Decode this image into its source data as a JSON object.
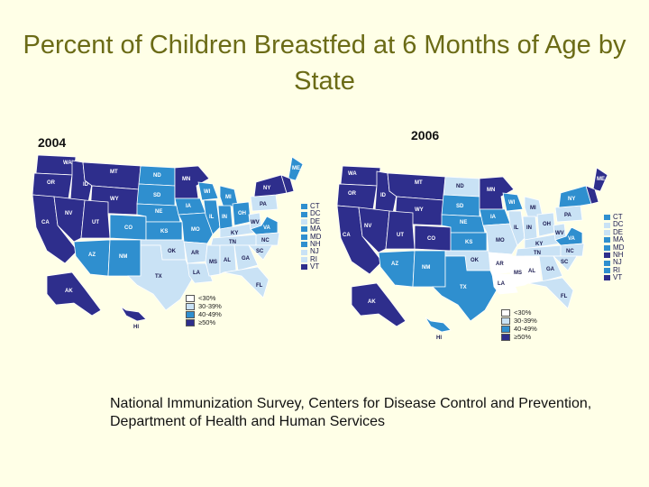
{
  "title": "Percent of Children Breastfed at 6 Months of Age by State",
  "source": "National Immunization Survey, Centers for Disease Control and Prevention, Department of Health and Human Services",
  "colors": {
    "lt30": "#ffffff",
    "r30_39": "#c9e2f5",
    "r40_49": "#2f8fcf",
    "ge50": "#2e2e8c"
  },
  "legend": [
    {
      "label": "<30%",
      "color_key": "lt30"
    },
    {
      "label": "30-39%",
      "color_key": "r30_39"
    },
    {
      "label": "40-49%",
      "color_key": "r40_49"
    },
    {
      "label": "≥50%",
      "color_key": "ge50"
    }
  ],
  "maps": [
    {
      "year": "2004",
      "labels": {
        "WA": "WA",
        "OR": "OR",
        "CA": "CA",
        "ID": "ID",
        "NV": "NV",
        "MT": "MT",
        "WY": "WY",
        "UT": "UT",
        "AZ": "AZ",
        "CO": "CO",
        "NM": "NM",
        "ND": "ND",
        "SD": "SD",
        "NE": "NE",
        "KS": "KS",
        "OK": "OK",
        "TX": "TX",
        "MN": "MN",
        "IA": "IA",
        "MO": "MO",
        "AR": "AR",
        "LA": "LA",
        "WI": "WI",
        "IL": "IL",
        "MS": "MS",
        "MI": "MI",
        "IN": "IN",
        "KY": "KY",
        "TN": "TN",
        "AL": "AL",
        "GA": "GA",
        "FL": "FL",
        "OH": "OH",
        "WV": "WV",
        "VA": "VA",
        "NC": "NC",
        "SC": "SC",
        "PA": "PA",
        "NY": "NY",
        "ME": "ME",
        "AK": "AK",
        "HI": "HI"
      },
      "side_states": [
        "CT",
        "DC",
        "DE",
        "MA",
        "MD",
        "NH",
        "NJ",
        "RI",
        "VT"
      ]
    },
    {
      "year": "2006",
      "labels": {
        "WA": "WA",
        "OR": "OR",
        "CA": "CA",
        "ID": "ID",
        "NV": "NV",
        "MT": "MT",
        "WY": "WY",
        "UT": "UT",
        "AZ": "AZ",
        "CO": "CO",
        "NM": "NM",
        "ND": "ND",
        "SD": "SD",
        "NE": "NE",
        "KS": "KS",
        "OK": "OK",
        "TX": "TX",
        "MN": "MN",
        "IA": "IA",
        "MO": "MO",
        "AR": "AR",
        "LA": "LA",
        "WI": "WI",
        "IL": "IL",
        "MS": "MS",
        "MI": "MI",
        "IN": "IN",
        "KY": "KY",
        "TN": "TN",
        "AL": "AL",
        "GA": "GA",
        "FL": "FL",
        "OH": "OH",
        "WV": "WV",
        "VA": "VA",
        "NC": "NC",
        "SC": "SC",
        "PA": "PA",
        "NY": "NY",
        "ME": "ME",
        "AK": "AK",
        "HI": "HI"
      },
      "side_states": [
        "CT",
        "DC",
        "DE",
        "MA",
        "MD",
        "NH",
        "NJ",
        "RI",
        "VT"
      ]
    }
  ]
}
